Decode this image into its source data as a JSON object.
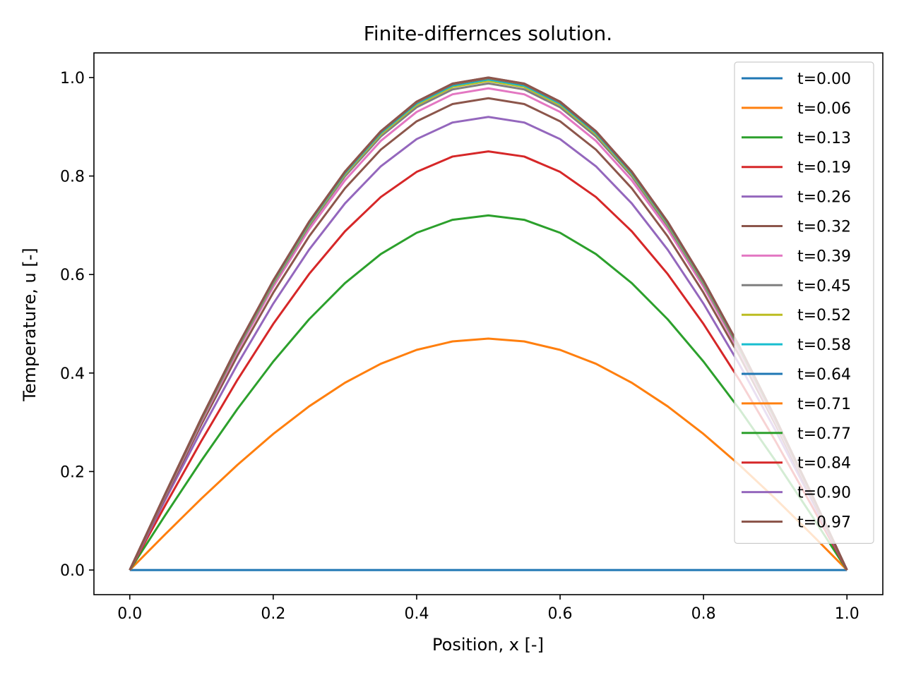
{
  "chart_data": {
    "type": "line",
    "title": "Finite-differnces solution.",
    "xlabel": "Position, x [-]",
    "ylabel": "Temperature, u [-]",
    "xlim": [
      -0.05,
      1.05
    ],
    "ylim": [
      -0.05,
      1.05
    ],
    "xticks": [
      0.0,
      0.2,
      0.4,
      0.6,
      0.8,
      1.0
    ],
    "xtick_labels": [
      "0.0",
      "0.2",
      "0.4",
      "0.6",
      "0.8",
      "1.0"
    ],
    "yticks": [
      0.0,
      0.2,
      0.4,
      0.6,
      0.8,
      1.0
    ],
    "ytick_labels": [
      "0.0",
      "0.2",
      "0.4",
      "0.6",
      "0.8",
      "1.0"
    ],
    "grid": false,
    "legend_position": "top-right",
    "x": [
      0.0,
      0.05,
      0.1,
      0.15,
      0.2,
      0.25,
      0.3,
      0.35,
      0.4,
      0.45,
      0.5,
      0.55,
      0.6,
      0.65,
      0.7,
      0.75,
      0.8,
      0.85,
      0.9,
      0.95,
      1.0
    ],
    "curve_shape": "sin(pi*x)",
    "series": [
      {
        "name": "t=0.00",
        "color": "#1f77b4",
        "peak": 0.0
      },
      {
        "name": "t=0.06",
        "color": "#ff7f0e",
        "peak": 0.47
      },
      {
        "name": "t=0.13",
        "color": "#2ca02c",
        "peak": 0.72
      },
      {
        "name": "t=0.19",
        "color": "#d62728",
        "peak": 0.85
      },
      {
        "name": "t=0.26",
        "color": "#9467bd",
        "peak": 0.92
      },
      {
        "name": "t=0.32",
        "color": "#8c564b",
        "peak": 0.958
      },
      {
        "name": "t=0.39",
        "color": "#e377c2",
        "peak": 0.978
      },
      {
        "name": "t=0.45",
        "color": "#7f7f7f",
        "peak": 0.988
      },
      {
        "name": "t=0.52",
        "color": "#bcbd22",
        "peak": 0.993
      },
      {
        "name": "t=0.58",
        "color": "#17becf",
        "peak": 0.996
      },
      {
        "name": "t=0.64",
        "color": "#1f77b4",
        "peak": 0.998
      },
      {
        "name": "t=0.71",
        "color": "#ff7f0e",
        "peak": 0.999
      },
      {
        "name": "t=0.77",
        "color": "#2ca02c",
        "peak": 0.9995
      },
      {
        "name": "t=0.84",
        "color": "#d62728",
        "peak": 0.9998
      },
      {
        "name": "t=0.90",
        "color": "#9467bd",
        "peak": 0.9999
      },
      {
        "name": "t=0.97",
        "color": "#8c564b",
        "peak": 1.0
      }
    ]
  }
}
